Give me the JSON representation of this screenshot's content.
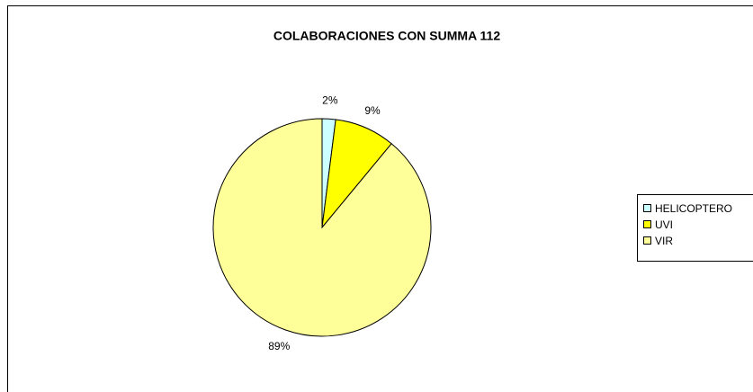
{
  "chart_data": {
    "type": "pie",
    "title": "COLABORACIONES CON SUMMA 112",
    "categories": [
      "HELICOPTERO",
      "UVI",
      "VIR"
    ],
    "values": [
      2,
      9,
      89
    ],
    "value_labels": [
      "2%",
      "9%",
      "89%"
    ],
    "colors": [
      "#ccffff",
      "#ffff00",
      "#ffff99"
    ],
    "legend": "right"
  }
}
